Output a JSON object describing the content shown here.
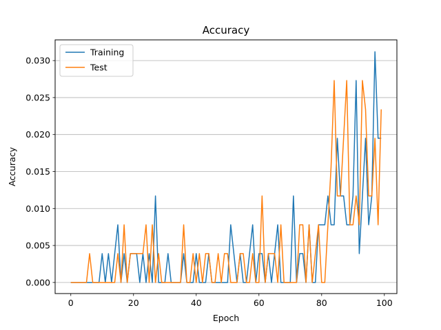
{
  "chart_data": {
    "type": "line",
    "title": "Accuracy",
    "xlabel": "Epoch",
    "ylabel": "Accuracy",
    "xlim": [
      -5,
      104
    ],
    "ylim": [
      -0.0015,
      0.0328
    ],
    "xticks": [
      0,
      20,
      40,
      60,
      80,
      100
    ],
    "yticks": [
      0.0,
      0.005,
      0.01,
      0.015,
      0.02,
      0.025,
      0.03
    ],
    "ytick_labels": [
      "0.000",
      "0.005",
      "0.010",
      "0.015",
      "0.020",
      "0.025",
      "0.030"
    ],
    "grid": "horizontal",
    "legend_position": "upper-left",
    "x": [
      0,
      1,
      2,
      3,
      4,
      5,
      6,
      7,
      8,
      9,
      10,
      11,
      12,
      13,
      14,
      15,
      16,
      17,
      18,
      19,
      20,
      21,
      22,
      23,
      24,
      25,
      26,
      27,
      28,
      29,
      30,
      31,
      32,
      33,
      34,
      35,
      36,
      37,
      38,
      39,
      40,
      41,
      42,
      43,
      44,
      45,
      46,
      47,
      48,
      49,
      50,
      51,
      52,
      53,
      54,
      55,
      56,
      57,
      58,
      59,
      60,
      61,
      62,
      63,
      64,
      65,
      66,
      67,
      68,
      69,
      70,
      71,
      72,
      73,
      74,
      75,
      76,
      77,
      78,
      79,
      80,
      81,
      82,
      83,
      84,
      85,
      86,
      87,
      88,
      89,
      90,
      91,
      92,
      93,
      94,
      95,
      96,
      97,
      98,
      99
    ],
    "series": [
      {
        "name": "Training",
        "color": "#1f77b4",
        "values": [
          0,
          0,
          0,
          0,
          0,
          0,
          0,
          0,
          0,
          0,
          0.0039,
          0,
          0.0039,
          0,
          0.0039,
          0.0078,
          0,
          0.0039,
          0,
          0.0039,
          0.0039,
          0.0039,
          0,
          0.0039,
          0,
          0.0039,
          0,
          0.0117,
          0,
          0,
          0,
          0.0039,
          0,
          0,
          0,
          0,
          0.0039,
          0,
          0,
          0,
          0.0039,
          0,
          0,
          0,
          0.0039,
          0,
          0,
          0,
          0,
          0,
          0,
          0.0078,
          0.0039,
          0,
          0.0039,
          0,
          0,
          0.0039,
          0.0078,
          0,
          0.0039,
          0.0039,
          0,
          0.0039,
          0,
          0.0039,
          0.0078,
          0,
          0,
          0,
          0,
          0.0117,
          0,
          0.0039,
          0.0039,
          0,
          0.0078,
          0,
          0,
          0.0078,
          0.0078,
          0.0078,
          0.0117,
          0.0078,
          0.0078,
          0.0195,
          0.0117,
          0.0117,
          0.0078,
          0.0078,
          0.0117,
          0.0273,
          0.0039,
          0.0117,
          0.0195,
          0.0078,
          0.0117,
          0.0312,
          0.0195,
          0.0195
        ]
      },
      {
        "name": "Test",
        "color": "#ff7f0e",
        "values": [
          0,
          0,
          0,
          0,
          0,
          0,
          0.0039,
          0,
          0,
          0,
          0,
          0,
          0,
          0,
          0,
          0.0039,
          0,
          0.0078,
          0,
          0.0039,
          0.0039,
          0.0039,
          0.0039,
          0.0039,
          0.0078,
          0,
          0.0078,
          0,
          0.0039,
          0,
          0,
          0,
          0,
          0,
          0,
          0,
          0.0078,
          0,
          0,
          0.0039,
          0,
          0.0039,
          0,
          0.0039,
          0.0039,
          0,
          0,
          0.0039,
          0,
          0.0039,
          0.0039,
          0,
          0,
          0,
          0.0039,
          0.0039,
          0,
          0,
          0.0039,
          0,
          0,
          0.0117,
          0,
          0.0039,
          0.0039,
          0.0039,
          0,
          0.0078,
          0,
          0,
          0,
          0,
          0,
          0.0078,
          0.0078,
          0,
          0.0078,
          0,
          0.0039,
          0.0078,
          0,
          0,
          0.0078,
          0.0156,
          0.0273,
          0.0117,
          0.0117,
          0.0195,
          0.0273,
          0.0078,
          0.0078,
          0.0117,
          0.0078,
          0.0273,
          0.0234,
          0.0117,
          0.0117,
          0.0195,
          0.0078,
          0.0234
        ]
      }
    ]
  }
}
